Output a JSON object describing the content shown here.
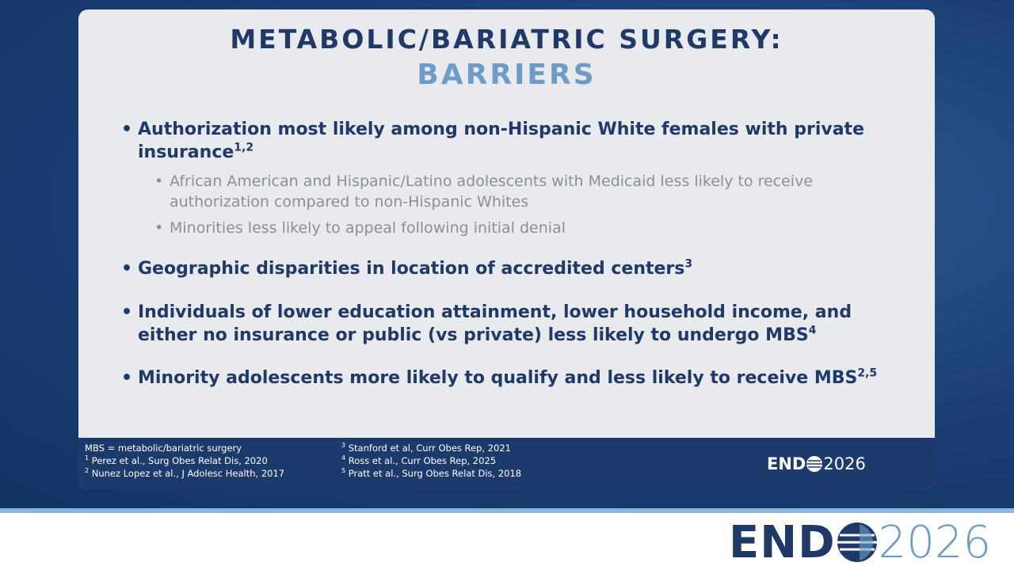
{
  "title": {
    "line1": "METABOLIC/BARIATRIC SURGERY:",
    "line2": "BARRIERS"
  },
  "bullets": [
    {
      "text": "Authorization most likely among non-Hispanic White females with private insurance",
      "sup": "1,2",
      "sub_bullets": [
        "African American and Hispanic/Latino adolescents with Medicaid less likely to receive authorization compared to non-Hispanic Whites",
        "Minorities less likely to appeal following initial denial"
      ]
    },
    {
      "text": "Geographic disparities in location of accredited centers",
      "sup": "3"
    },
    {
      "text": "Individuals of lower education attainment, lower household income, and either no insurance or public (vs private) less likely to undergo MBS",
      "sup": "4"
    },
    {
      "text": "Minority adolescents more likely to qualify and less likely to receive MBS",
      "sup": "2,5"
    }
  ],
  "footnotes": {
    "abbreviation": "MBS = metabolic/bariatric surgery",
    "refs": [
      {
        "num": "1",
        "text": "Perez et al., Surg Obes Relat Dis, 2020"
      },
      {
        "num": "2",
        "text": "Nunez Lopez et al., J Adolesc Health, 2017"
      },
      {
        "num": "3",
        "text": "Stanford et al, Curr Obes Rep, 2021"
      },
      {
        "num": "4",
        "text": "Ross et al., Curr Obes Rep, 2025"
      },
      {
        "num": "5",
        "text": "Pratt et al., Surg Obes Relat Dis, 2018"
      }
    ]
  },
  "logo": {
    "name": "END",
    "year": "2026"
  }
}
